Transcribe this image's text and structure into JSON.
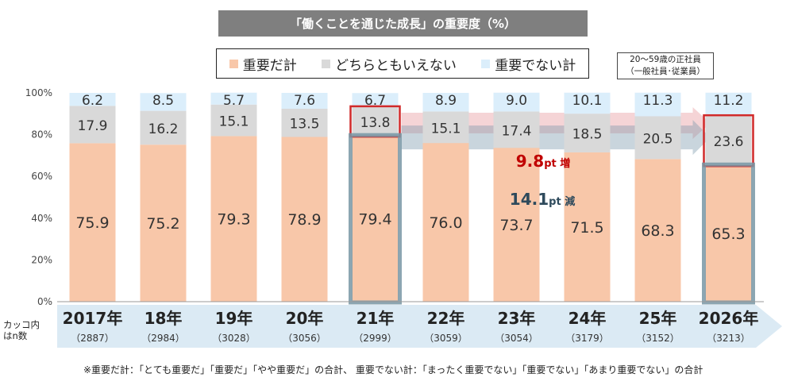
{
  "chart_data": {
    "type": "bar",
    "stacked": true,
    "percent": true,
    "title": "「働くことを通じた成長」の重要度（%）",
    "categories": [
      "2017年",
      "18年",
      "19年",
      "20年",
      "21年",
      "22年",
      "23年",
      "24年",
      "25年",
      "2026年"
    ],
    "sample_sizes": [
      "（2887）",
      "（2984）",
      "（3028）",
      "（3056）",
      "（2999）",
      "（3059）",
      "（3054）",
      "（3179）",
      "（3152）",
      "（3213）"
    ],
    "series": [
      {
        "name": "重要だ計",
        "color": "#f8c7a9",
        "values": [
          75.9,
          75.2,
          79.3,
          78.9,
          79.4,
          76.0,
          73.7,
          71.5,
          68.3,
          65.3
        ]
      },
      {
        "name": "どちらともいえない",
        "color": "#d9d9d9",
        "values": [
          17.9,
          16.2,
          15.1,
          13.5,
          13.8,
          15.1,
          17.4,
          18.5,
          20.5,
          23.6
        ]
      },
      {
        "name": "重要でない計",
        "color": "#dbeefb",
        "values": [
          6.2,
          8.5,
          5.7,
          7.6,
          6.7,
          8.9,
          9.0,
          10.1,
          11.3,
          11.2
        ]
      }
    ],
    "ylim": [
      0,
      100
    ],
    "yticks": [
      "0%",
      "20%",
      "40%",
      "60%",
      "80%",
      "100%"
    ],
    "legend_position": "top-center",
    "annotations": [
      {
        "value": "9.8",
        "unit": "pt",
        "suffix": "増",
        "color": "#c00000"
      },
      {
        "value": "14.1",
        "unit": "pt",
        "suffix": "減",
        "color": "#2e4a5c"
      }
    ]
  },
  "note_box": {
    "line1": "20～59歳の正社員",
    "line2": "（一般社員･従業員）"
  },
  "side_label": {
    "line1": "カッコ内",
    "line2": "はn数"
  },
  "footnote": "※重要だ計：「とても重要だ」「重要だ」「やや重要だ」の合計、 重要でない計：「まったく重要でない」「重要でない」「あまり重要でない」の合計"
}
